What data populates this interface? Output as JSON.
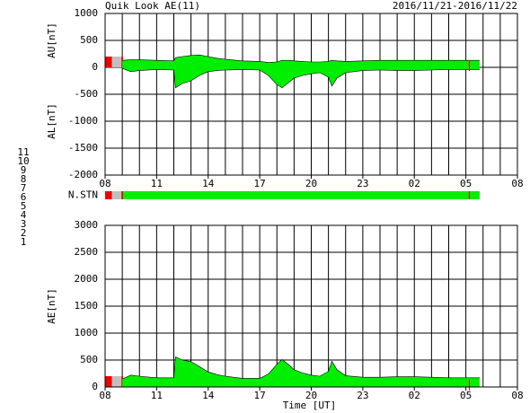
{
  "header": {
    "title": "Quik Look AE(11)",
    "date_range": "2016/11/21-2016/11/22"
  },
  "stations": [
    {
      "label": "11",
      "color": "#00d8d8"
    },
    {
      "label": "10",
      "color": "#e000e0"
    },
    {
      "label": "9",
      "color": "#000080"
    },
    {
      "label": "8",
      "color": "#e0e000"
    },
    {
      "label": "7",
      "color": "#80e080"
    },
    {
      "label": "6",
      "color": "#e00000"
    },
    {
      "label": "5",
      "color": "#909090"
    },
    {
      "label": "4",
      "color": "#c8c8c8"
    },
    {
      "label": "3",
      "color": "#008080"
    },
    {
      "label": "2",
      "color": "#800080"
    },
    {
      "label": "1",
      "color": "#0000e0"
    }
  ],
  "chart_data": [
    {
      "type": "area",
      "ylabels": [
        "AU[nT]",
        "AL[nT]"
      ],
      "x": [
        1.0,
        1.5,
        2.0,
        3.0,
        4.0,
        4.1,
        4.5,
        5.0,
        5.5,
        6.0,
        6.5,
        7.0,
        8.0,
        9.0,
        9.5,
        10.0,
        10.3,
        10.7,
        11.0,
        11.5,
        12.0,
        12.5,
        13.0,
        13.2,
        13.5,
        14.0,
        15.0,
        16.0,
        17.0,
        18.0,
        19.0,
        20.0,
        21.0,
        21.8
      ],
      "series": [
        {
          "color": "#00ee00",
          "values": [
            130,
            140,
            140,
            130,
            120,
            180,
            200,
            220,
            230,
            200,
            170,
            150,
            120,
            110,
            90,
            100,
            130,
            130,
            120,
            110,
            100,
            100,
            110,
            130,
            120,
            110,
            120,
            130,
            130,
            130,
            130,
            130,
            130,
            130
          ]
        },
        {
          "color": "#00ee00",
          "values": [
            -20,
            -80,
            -60,
            -40,
            -50,
            -380,
            -300,
            -250,
            -150,
            -80,
            -60,
            -50,
            -40,
            -50,
            -150,
            -320,
            -380,
            -280,
            -200,
            -150,
            -120,
            -100,
            -180,
            -350,
            -200,
            -100,
            -60,
            -50,
            -60,
            -60,
            -50,
            -40,
            -40,
            -40
          ]
        }
      ],
      "xlim": [
        0,
        24
      ],
      "xticks": [
        {
          "value": 0,
          "label": "08"
        },
        {
          "value": 3,
          "label": "11"
        },
        {
          "value": 6,
          "label": "14"
        },
        {
          "value": 9,
          "label": "17"
        },
        {
          "value": 12,
          "label": "20"
        },
        {
          "value": 15,
          "label": "23"
        },
        {
          "value": 18,
          "label": "02"
        },
        {
          "value": 21,
          "label": "05"
        },
        {
          "value": 24,
          "label": "08"
        }
      ],
      "xgrid": [
        0,
        1,
        2,
        3,
        4,
        5,
        6,
        7,
        8,
        9,
        10,
        11,
        12,
        13,
        14,
        15,
        16,
        17,
        18,
        19,
        20,
        21,
        22,
        23,
        24
      ],
      "ylim": [
        -2000,
        1000
      ],
      "yticks": [
        -2000,
        -1500,
        -1000,
        -500,
        0,
        500,
        1000
      ],
      "grid": true
    },
    {
      "type": "status",
      "label": "N.STN",
      "segments": [
        {
          "start": 0,
          "end": 0.4,
          "color": "#ee0000"
        },
        {
          "start": 0.4,
          "end": 0.95,
          "color": "#c0c0c0"
        },
        {
          "start": 0.95,
          "end": 1.05,
          "color": "#ee0000"
        },
        {
          "start": 1.05,
          "end": 21.8,
          "color": "#00ee00"
        }
      ],
      "markers": [
        21.2
      ],
      "xlim": [
        0,
        24
      ]
    },
    {
      "type": "area",
      "ylabel": "AE[nT]",
      "xlabel": "Time [UT]",
      "x": [
        1.0,
        1.5,
        2.0,
        3.0,
        4.0,
        4.1,
        4.5,
        5.0,
        5.5,
        6.0,
        6.5,
        7.0,
        8.0,
        9.0,
        9.5,
        10.0,
        10.3,
        10.7,
        11.0,
        11.5,
        12.0,
        12.5,
        13.0,
        13.2,
        13.5,
        14.0,
        15.0,
        16.0,
        17.0,
        18.0,
        19.0,
        20.0,
        21.0,
        21.8
      ],
      "series": [
        {
          "color": "#00ee00",
          "values": [
            150,
            220,
            200,
            170,
            170,
            560,
            500,
            470,
            380,
            280,
            230,
            200,
            160,
            160,
            240,
            420,
            510,
            410,
            320,
            260,
            220,
            200,
            290,
            480,
            320,
            210,
            180,
            180,
            190,
            190,
            180,
            170,
            170,
            170
          ]
        }
      ],
      "xlim": [
        0,
        24
      ],
      "xticks": [
        {
          "value": 0,
          "label": "08"
        },
        {
          "value": 3,
          "label": "11"
        },
        {
          "value": 6,
          "label": "14"
        },
        {
          "value": 9,
          "label": "17"
        },
        {
          "value": 12,
          "label": "20"
        },
        {
          "value": 15,
          "label": "23"
        },
        {
          "value": 18,
          "label": "02"
        },
        {
          "value": 21,
          "label": "05"
        },
        {
          "value": 24,
          "label": "08"
        }
      ],
      "xgrid": [
        0,
        1,
        2,
        3,
        4,
        5,
        6,
        7,
        8,
        9,
        10,
        11,
        12,
        13,
        14,
        15,
        16,
        17,
        18,
        19,
        20,
        21,
        22,
        23,
        24
      ],
      "ylim": [
        0,
        3000
      ],
      "yticks": [
        0,
        500,
        1000,
        1500,
        2000,
        2500,
        3000
      ],
      "grid": true
    }
  ]
}
